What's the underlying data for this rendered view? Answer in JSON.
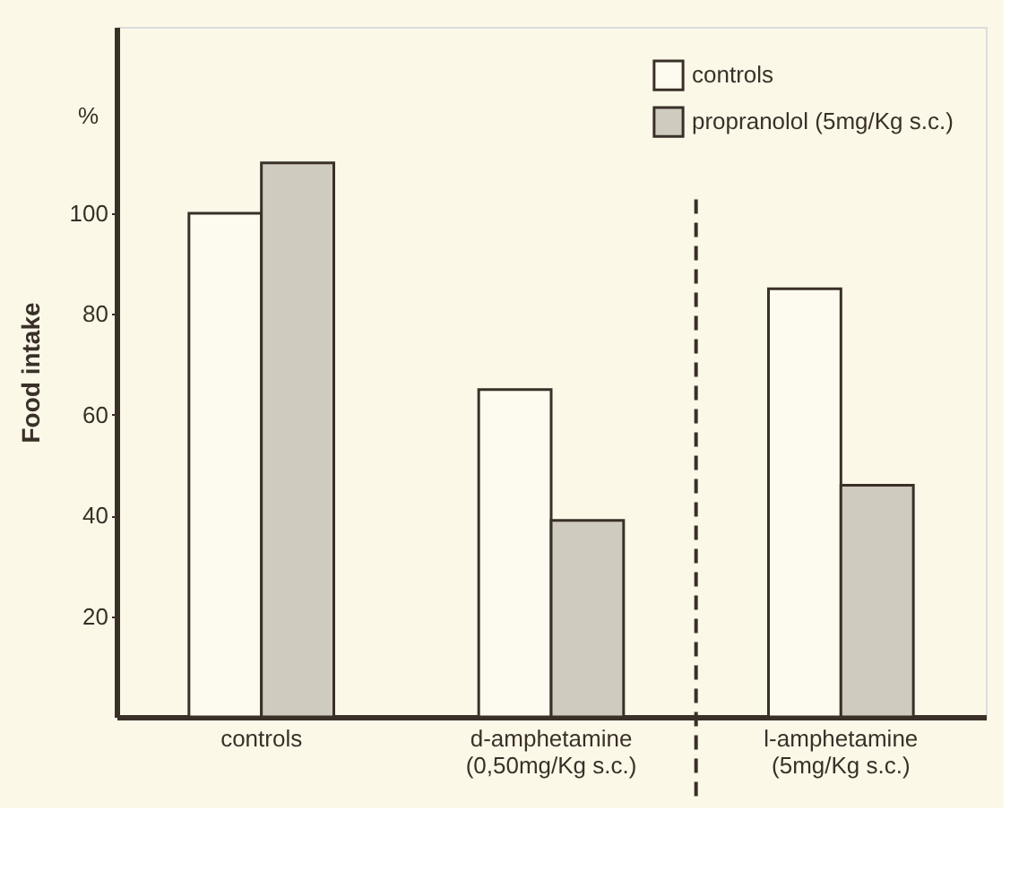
{
  "chart_data": {
    "type": "bar",
    "categories": [
      "controls",
      "d-amphetamine\n(0,50mg/Kg s.c.)",
      "l-amphetamine\n(5mg/Kg s.c.)"
    ],
    "series": [
      {
        "name": "controls",
        "color": "#fdfbf0",
        "values": [
          100,
          65,
          85
        ]
      },
      {
        "name": "propranolol (5mg/Kg s.c.)",
        "color": "#cfcbbf",
        "values": [
          110,
          39,
          46
        ]
      }
    ],
    "ylabel": "Food intake",
    "annotations": [
      "%"
    ],
    "ylim": [
      0,
      137
    ],
    "yticks": [
      20,
      40,
      60,
      80,
      100
    ],
    "grid": false,
    "legend": "top right"
  }
}
